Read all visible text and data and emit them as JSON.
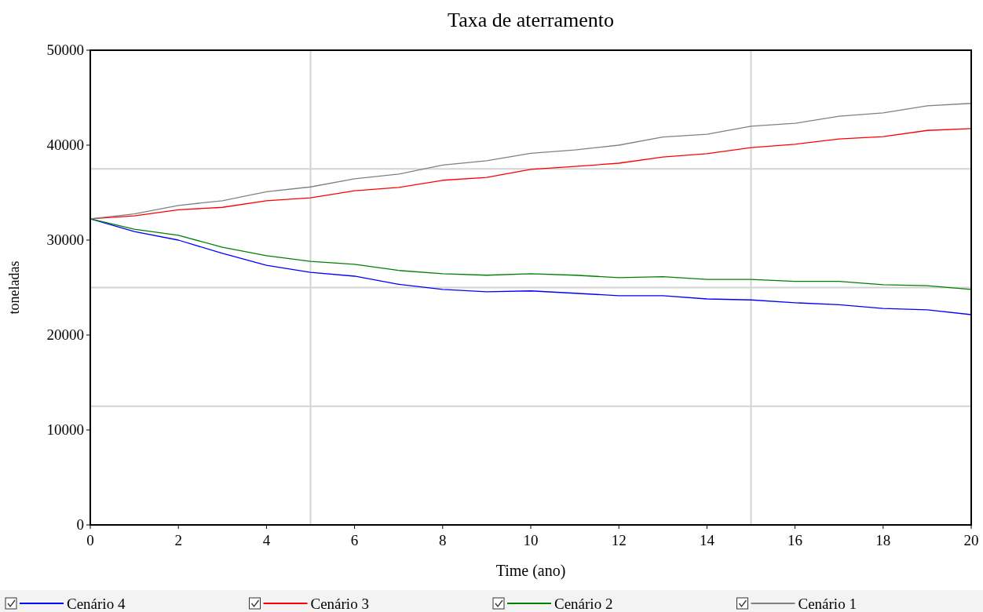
{
  "chart_data": {
    "type": "line",
    "title": "Taxa de aterramento",
    "xlabel": "Time (ano)",
    "ylabel": "toneladas",
    "x": [
      0,
      1,
      2,
      3,
      4,
      5,
      6,
      7,
      8,
      9,
      10,
      11,
      12,
      13,
      14,
      15,
      16,
      17,
      18,
      19,
      20
    ],
    "xlim": [
      0,
      20
    ],
    "xticks": [
      0,
      2,
      4,
      6,
      8,
      10,
      12,
      14,
      16,
      18,
      20,
      {
        "value": 5,
        "label": null
      },
      {
        "value": 15,
        "label": null
      }
    ],
    "ylim": [
      0,
      50000
    ],
    "yticks": [
      0,
      10000,
      20000,
      30000,
      40000,
      50000,
      {
        "value": 12500,
        "label": null
      },
      {
        "value": 25000,
        "label": null
      },
      {
        "value": 37500,
        "label": null
      }
    ],
    "grid": true,
    "legend": "bottom",
    "line_style": "solid",
    "series": [
      {
        "name": "Cenário 4",
        "color": "#0000ff",
        "values": [
          32250,
          30900,
          30000,
          28600,
          27350,
          26600,
          26200,
          25350,
          24800,
          24550,
          24650,
          24400,
          24150,
          24150,
          23800,
          23700,
          23400,
          23200,
          22800,
          22650,
          22150
        ]
      },
      {
        "name": "Cenário 3",
        "color": "#ff0000",
        "values": [
          32250,
          32550,
          33200,
          33450,
          34150,
          34450,
          35200,
          35550,
          36300,
          36600,
          37450,
          37750,
          38100,
          38750,
          39100,
          39750,
          40100,
          40650,
          40900,
          41550,
          41750
        ]
      },
      {
        "name": "Cenário 2",
        "color": "#008000",
        "values": [
          32250,
          31150,
          30500,
          29250,
          28350,
          27750,
          27450,
          26800,
          26450,
          26300,
          26450,
          26300,
          26050,
          26150,
          25850,
          25850,
          25650,
          25650,
          25300,
          25200,
          24800
        ]
      },
      {
        "name": "Cenário 1",
        "color": "#808080",
        "values": [
          32250,
          32750,
          33650,
          34150,
          35100,
          35600,
          36450,
          36950,
          37900,
          38350,
          39150,
          39500,
          40000,
          40850,
          41150,
          42000,
          42300,
          43050,
          43400,
          44150,
          44400
        ]
      }
    ]
  }
}
